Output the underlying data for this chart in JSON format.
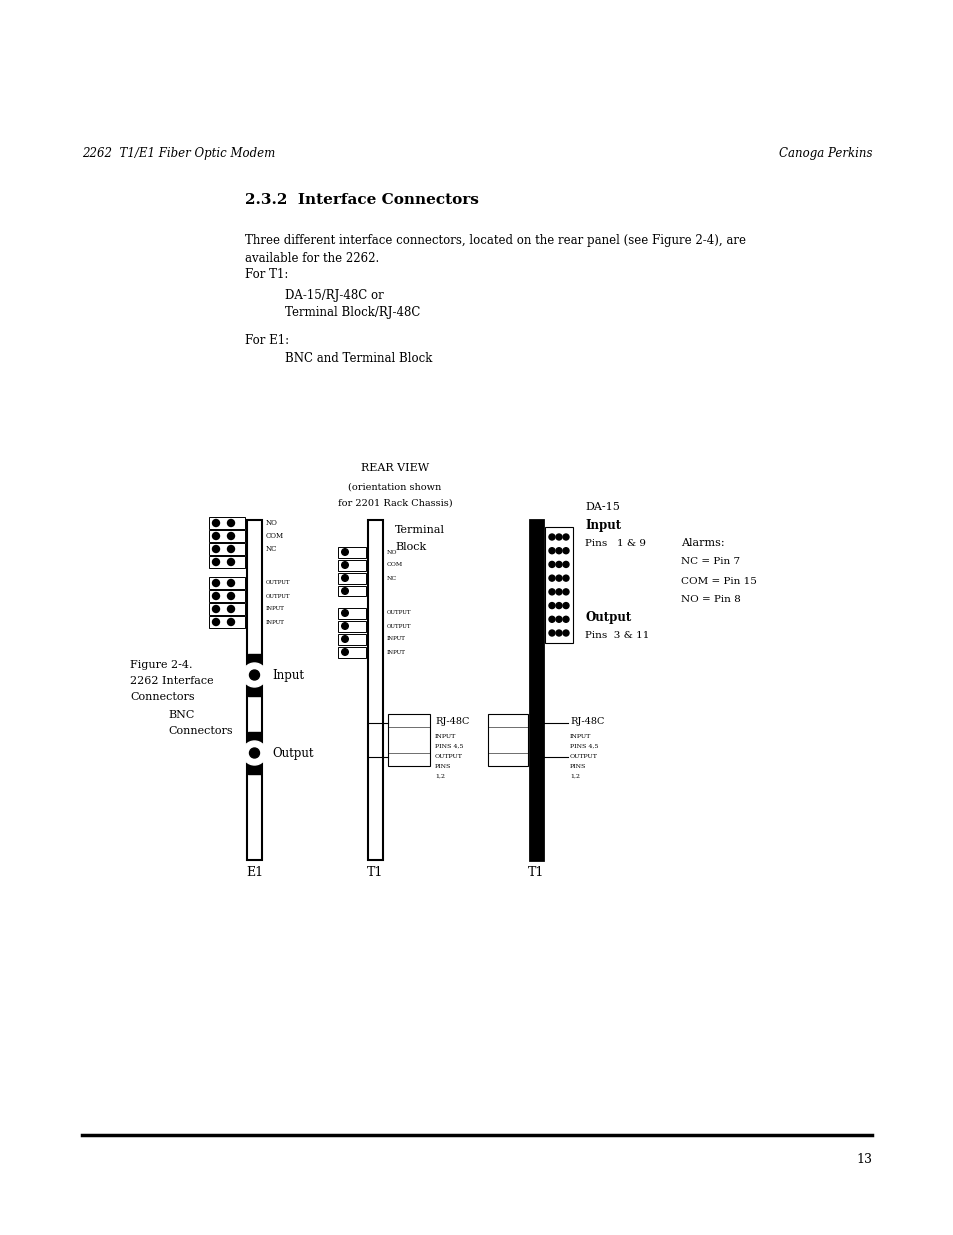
{
  "bg_color": "#ffffff",
  "page_width": 9.54,
  "page_height": 12.35,
  "header_left": "2262  T1/E1 Fiber Optic Modem",
  "header_right": "Canoga Perkins",
  "section_title": "2.3.2  Interface Connectors",
  "body_text_1a": "Three different interface connectors, located on the rear panel (see Figure 2-4), are",
  "body_text_1b": "available for the 2262.",
  "body_text_2": "For T1:",
  "body_indent_1": "DA-15/RJ-48C or",
  "body_indent_2": "Terminal Block/RJ-48C",
  "body_text_3": "For E1:",
  "body_indent_3": "BNC and Terminal Block",
  "figure_label_1": "Figure 2-4.",
  "figure_label_2": "2262 Interface",
  "figure_label_3": "Connectors",
  "rear_view_title": "REAR VIEW",
  "rear_view_sub1": "(orientation shown",
  "rear_view_sub2": "for 2201 Rack Chassis)",
  "terminal_block_label1": "Terminal",
  "terminal_block_label2": "Block",
  "da15_label": "DA-15",
  "input_label_da15": "Input",
  "pins_1_9": "Pins   1 & 9",
  "alarms_label": "Alarms:",
  "nc_pin7": "NC = Pin 7",
  "com_pin15": "COM = Pin 15",
  "no_pin8": "NO = Pin 8",
  "output_label_da15": "Output",
  "pins_3_11": "Pins  3 & 11",
  "rj48c_mid_label": "RJ-48C",
  "rj48c_right_label": "RJ-48C",
  "bnc_label1": "BNC",
  "bnc_label2": "Connectors",
  "input_bnc": "Input",
  "output_bnc": "Output",
  "e1_label": "E1",
  "t1_label_1": "T1",
  "t1_label_2": "T1",
  "page_number": "13",
  "text_font": "DejaVu Serif"
}
